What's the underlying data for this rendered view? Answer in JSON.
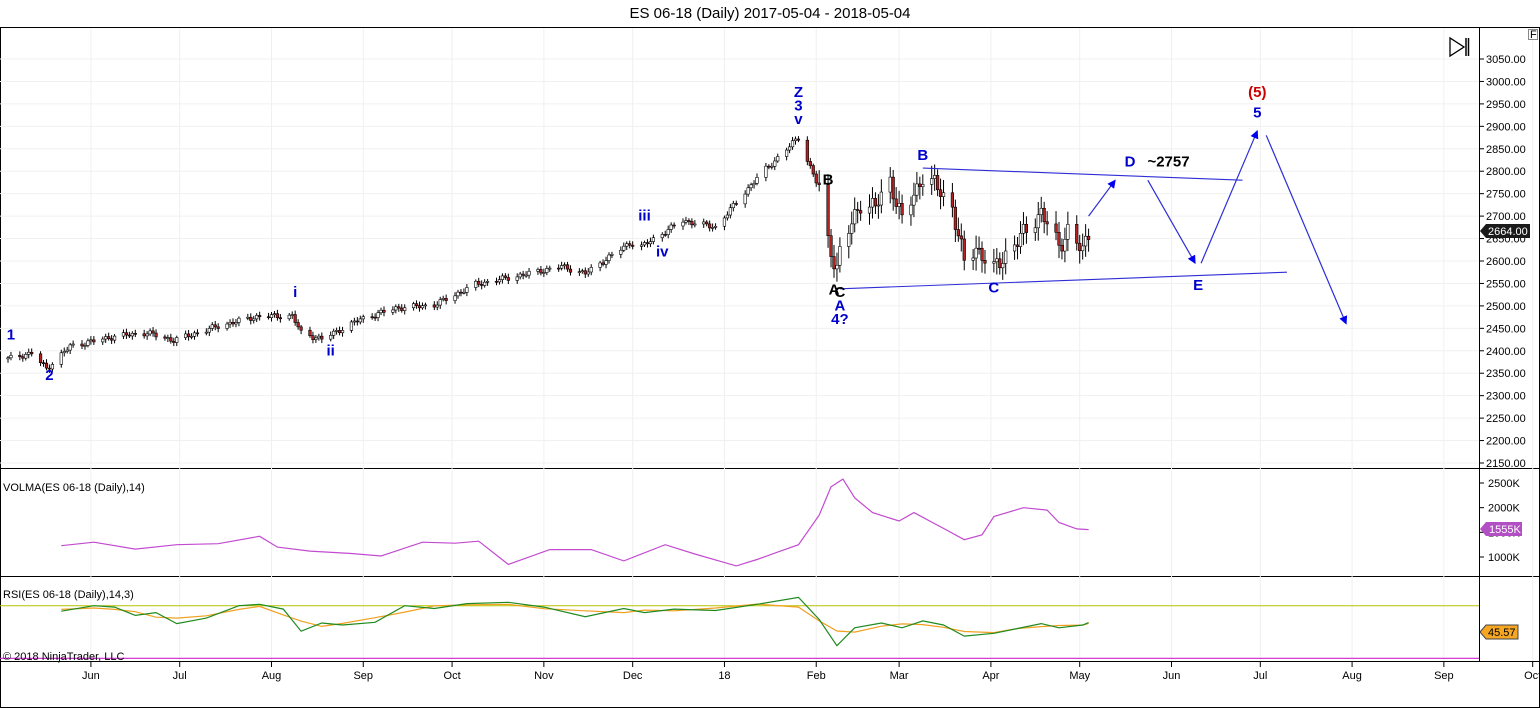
{
  "window_title": "ES 06-18 (Daily)  2017-05-04 - 2018-05-04",
  "copyright": "© 2018 NinjaTrader, LLC",
  "corner_badge": "F",
  "chart_data": [
    {
      "type": "candlestick",
      "title": "ES 06-18 (Daily)  2017-05-04 - 2018-05-04",
      "x_tick_labels": [
        "Jun",
        "Jul",
        "Aug",
        "Sep",
        "Oct",
        "Nov",
        "Dec",
        "18",
        "Feb",
        "Mar",
        "Apr",
        "May",
        "Jun",
        "Jul",
        "Aug",
        "Sep",
        "Oct"
      ],
      "y_ticks": [
        3050,
        3000,
        2950,
        2900,
        2850,
        2800,
        2750,
        2700,
        2650,
        2600,
        2550,
        2500,
        2450,
        2400,
        2350,
        2300,
        2250,
        2200,
        2150
      ],
      "ylim": [
        2140,
        3080
      ],
      "last_price": "2664.00",
      "close_path": [
        {
          "date": "2017-05-04",
          "close": 2382
        },
        {
          "date": "2017-05-12",
          "close": 2395
        },
        {
          "date": "2017-05-17",
          "close": 2360
        },
        {
          "date": "2017-05-25",
          "close": 2410
        },
        {
          "date": "2017-06-09",
          "close": 2432
        },
        {
          "date": "2017-06-20",
          "close": 2440
        },
        {
          "date": "2017-06-29",
          "close": 2423
        },
        {
          "date": "2017-07-14",
          "close": 2455
        },
        {
          "date": "2017-07-27",
          "close": 2476
        },
        {
          "date": "2017-08-08",
          "close": 2478
        },
        {
          "date": "2017-08-11",
          "close": 2440
        },
        {
          "date": "2017-08-18",
          "close": 2426
        },
        {
          "date": "2017-08-31",
          "close": 2470
        },
        {
          "date": "2017-09-12",
          "close": 2495
        },
        {
          "date": "2017-09-25",
          "close": 2502
        },
        {
          "date": "2017-10-09",
          "close": 2548
        },
        {
          "date": "2017-10-24",
          "close": 2568
        },
        {
          "date": "2017-11-07",
          "close": 2588
        },
        {
          "date": "2017-11-15",
          "close": 2572
        },
        {
          "date": "2017-11-30",
          "close": 2640
        },
        {
          "date": "2017-12-04",
          "close": 2632
        },
        {
          "date": "2017-12-18",
          "close": 2690
        },
        {
          "date": "2017-12-29",
          "close": 2675
        },
        {
          "date": "2018-01-12",
          "close": 2785
        },
        {
          "date": "2018-01-26",
          "close": 2875
        },
        {
          "date": "2018-02-02",
          "close": 2760
        },
        {
          "date": "2018-02-05",
          "close": 2640
        },
        {
          "date": "2018-02-08",
          "close": 2585
        },
        {
          "date": "2018-02-09",
          "close": 2620
        },
        {
          "date": "2018-02-16",
          "close": 2730
        },
        {
          "date": "2018-02-21",
          "close": 2720
        },
        {
          "date": "2018-02-26",
          "close": 2780
        },
        {
          "date": "2018-03-02",
          "close": 2690
        },
        {
          "date": "2018-03-09",
          "close": 2790
        },
        {
          "date": "2018-03-13",
          "close": 2770
        },
        {
          "date": "2018-03-19",
          "close": 2720
        },
        {
          "date": "2018-03-23",
          "close": 2595
        },
        {
          "date": "2018-03-27",
          "close": 2630
        },
        {
          "date": "2018-04-02",
          "close": 2580
        },
        {
          "date": "2018-04-06",
          "close": 2615
        },
        {
          "date": "2018-04-12",
          "close": 2660
        },
        {
          "date": "2018-04-18",
          "close": 2710
        },
        {
          "date": "2018-04-24",
          "close": 2630
        },
        {
          "date": "2018-04-27",
          "close": 2670
        },
        {
          "date": "2018-05-02",
          "close": 2620
        },
        {
          "date": "2018-05-04",
          "close": 2664
        }
      ],
      "annotations": [
        {
          "text": "1",
          "date": "2017-05-05",
          "price": 2425,
          "color": "#0000cc"
        },
        {
          "text": "2",
          "date": "2017-05-18",
          "price": 2335,
          "color": "#0000cc"
        },
        {
          "text": "i",
          "date": "2017-08-09",
          "price": 2520,
          "color": "#0000cc"
        },
        {
          "text": "ii",
          "date": "2017-08-21",
          "price": 2390,
          "color": "#0000cc"
        },
        {
          "text": "iii",
          "date": "2017-12-05",
          "price": 2690,
          "color": "#0000cc"
        },
        {
          "text": "iv",
          "date": "2017-12-11",
          "price": 2610,
          "color": "#0000cc"
        },
        {
          "text": "Z",
          "date": "2018-01-26",
          "price": 2965,
          "color": "#0000cc"
        },
        {
          "text": "3",
          "date": "2018-01-26",
          "price": 2935,
          "color": "#0000cc"
        },
        {
          "text": "v",
          "date": "2018-01-26",
          "price": 2905,
          "color": "#0000cc"
        },
        {
          "text": "B",
          "date": "2018-02-05",
          "price": 2770,
          "color": "#000000"
        },
        {
          "text": "A",
          "date": "2018-02-07",
          "price": 2525,
          "color": "#000000"
        },
        {
          "text": "C",
          "date": "2018-02-09",
          "price": 2520,
          "color": "#000000"
        },
        {
          "text": "A",
          "date": "2018-02-09",
          "price": 2490,
          "color": "#0000cc"
        },
        {
          "text": "4?",
          "date": "2018-02-09",
          "price": 2460,
          "color": "#0000cc"
        },
        {
          "text": "B",
          "date": "2018-03-09",
          "price": 2825,
          "color": "#0000cc"
        },
        {
          "text": "C",
          "date": "2018-04-02",
          "price": 2530,
          "color": "#0000cc"
        },
        {
          "text": "D",
          "date": "2018-05-18",
          "price": 2810,
          "color": "#0000cc"
        },
        {
          "text": "~2757",
          "date": "2018-05-31",
          "price": 2810,
          "color": "#000000"
        },
        {
          "text": "E",
          "date": "2018-06-10",
          "price": 2535,
          "color": "#0000cc"
        },
        {
          "text": "(5)",
          "date": "2018-06-30",
          "price": 2965,
          "color": "#cc0000"
        },
        {
          "text": "5",
          "date": "2018-06-30",
          "price": 2920,
          "color": "#0000cc"
        }
      ],
      "trend_lines": [
        {
          "from": {
            "date": "2018-03-09",
            "price": 2807
          },
          "to": {
            "date": "2018-06-25",
            "price": 2780
          }
        },
        {
          "from": {
            "date": "2018-02-09",
            "price": 2538
          },
          "to": {
            "date": "2018-07-10",
            "price": 2575
          }
        }
      ],
      "projection_arrows": [
        {
          "from": {
            "date": "2018-05-04",
            "price": 2700
          },
          "to": {
            "date": "2018-05-13",
            "price": 2780
          }
        },
        {
          "from": {
            "date": "2018-05-24",
            "price": 2780
          },
          "to": {
            "date": "2018-06-09",
            "price": 2595
          }
        },
        {
          "from": {
            "date": "2018-06-11",
            "price": 2595
          },
          "to": {
            "date": "2018-06-30",
            "price": 2890
          }
        },
        {
          "from": {
            "date": "2018-07-03",
            "price": 2880
          },
          "to": {
            "date": "2018-07-30",
            "price": 2460
          }
        }
      ]
    },
    {
      "type": "line",
      "title": "VOLMA(ES 06-18 (Daily),14)",
      "y_ticks": [
        "2500K",
        "2000K",
        "1500K",
        "1000K"
      ],
      "y_tick_values": [
        2500,
        2000,
        1500,
        1000
      ],
      "ylim": [
        700,
        2650
      ],
      "last_value": "1555K",
      "series": [
        {
          "values": [
            {
              "date": "2017-05-22",
              "v": 1230
            },
            {
              "date": "2017-06-02",
              "v": 1300
            },
            {
              "date": "2017-06-16",
              "v": 1160
            },
            {
              "date": "2017-06-30",
              "v": 1250
            },
            {
              "date": "2017-07-14",
              "v": 1270
            },
            {
              "date": "2017-07-28",
              "v": 1420
            },
            {
              "date": "2017-08-03",
              "v": 1200
            },
            {
              "date": "2017-08-14",
              "v": 1120
            },
            {
              "date": "2017-08-28",
              "v": 1070
            },
            {
              "date": "2017-09-07",
              "v": 1020
            },
            {
              "date": "2017-09-21",
              "v": 1300
            },
            {
              "date": "2017-10-02",
              "v": 1280
            },
            {
              "date": "2017-10-10",
              "v": 1320
            },
            {
              "date": "2017-10-20",
              "v": 850
            },
            {
              "date": "2017-11-03",
              "v": 1150
            },
            {
              "date": "2017-11-17",
              "v": 1150
            },
            {
              "date": "2017-11-28",
              "v": 920
            },
            {
              "date": "2017-12-12",
              "v": 1250
            },
            {
              "date": "2017-12-22",
              "v": 1060
            },
            {
              "date": "2018-01-05",
              "v": 820
            },
            {
              "date": "2018-01-12",
              "v": 950
            },
            {
              "date": "2018-01-19",
              "v": 1100
            },
            {
              "date": "2018-01-26",
              "v": 1250
            },
            {
              "date": "2018-02-02",
              "v": 1850
            },
            {
              "date": "2018-02-06",
              "v": 2420
            },
            {
              "date": "2018-02-10",
              "v": 2580
            },
            {
              "date": "2018-02-14",
              "v": 2200
            },
            {
              "date": "2018-02-20",
              "v": 1900
            },
            {
              "date": "2018-03-01",
              "v": 1730
            },
            {
              "date": "2018-03-06",
              "v": 1900
            },
            {
              "date": "2018-03-16",
              "v": 1580
            },
            {
              "date": "2018-03-23",
              "v": 1350
            },
            {
              "date": "2018-03-29",
              "v": 1450
            },
            {
              "date": "2018-04-02",
              "v": 1820
            },
            {
              "date": "2018-04-12",
              "v": 2000
            },
            {
              "date": "2018-04-20",
              "v": 1950
            },
            {
              "date": "2018-04-24",
              "v": 1700
            },
            {
              "date": "2018-04-30",
              "v": 1570
            },
            {
              "date": "2018-05-04",
              "v": 1555
            }
          ]
        }
      ]
    },
    {
      "type": "line",
      "title": "RSI(ES 06-18 (Daily),14,3)",
      "ylim": [
        0,
        100
      ],
      "upper_level": 70,
      "lower_level": 30,
      "last_value": "45.57",
      "series": [
        {
          "values": [
            {
              "date": "2017-05-22",
              "v": 62
            },
            {
              "date": "2017-06-02",
              "v": 70
            },
            {
              "date": "2017-06-09",
              "v": 68
            },
            {
              "date": "2017-06-16",
              "v": 56
            },
            {
              "date": "2017-06-23",
              "v": 60
            },
            {
              "date": "2017-06-30",
              "v": 44
            },
            {
              "date": "2017-07-10",
              "v": 52
            },
            {
              "date": "2017-07-21",
              "v": 70
            },
            {
              "date": "2017-07-28",
              "v": 72
            },
            {
              "date": "2017-08-05",
              "v": 65
            },
            {
              "date": "2017-08-11",
              "v": 33
            },
            {
              "date": "2017-08-18",
              "v": 45
            },
            {
              "date": "2017-08-25",
              "v": 42
            },
            {
              "date": "2017-09-05",
              "v": 46
            },
            {
              "date": "2017-09-15",
              "v": 70
            },
            {
              "date": "2017-09-25",
              "v": 66
            },
            {
              "date": "2017-10-06",
              "v": 73
            },
            {
              "date": "2017-10-20",
              "v": 75
            },
            {
              "date": "2017-11-01",
              "v": 68
            },
            {
              "date": "2017-11-15",
              "v": 54
            },
            {
              "date": "2017-11-28",
              "v": 66
            },
            {
              "date": "2017-12-05",
              "v": 60
            },
            {
              "date": "2017-12-15",
              "v": 65
            },
            {
              "date": "2017-12-29",
              "v": 63
            },
            {
              "date": "2018-01-12",
              "v": 72
            },
            {
              "date": "2018-01-26",
              "v": 82
            },
            {
              "date": "2018-02-02",
              "v": 50
            },
            {
              "date": "2018-02-08",
              "v": 12
            },
            {
              "date": "2018-02-14",
              "v": 38
            },
            {
              "date": "2018-02-23",
              "v": 45
            },
            {
              "date": "2018-03-02",
              "v": 38
            },
            {
              "date": "2018-03-09",
              "v": 48
            },
            {
              "date": "2018-03-16",
              "v": 42
            },
            {
              "date": "2018-03-23",
              "v": 26
            },
            {
              "date": "2018-04-02",
              "v": 30
            },
            {
              "date": "2018-04-10",
              "v": 37
            },
            {
              "date": "2018-04-18",
              "v": 44
            },
            {
              "date": "2018-04-24",
              "v": 38
            },
            {
              "date": "2018-05-02",
              "v": 42
            },
            {
              "date": "2018-05-04",
              "v": 45.57
            }
          ]
        }
      ]
    }
  ]
}
